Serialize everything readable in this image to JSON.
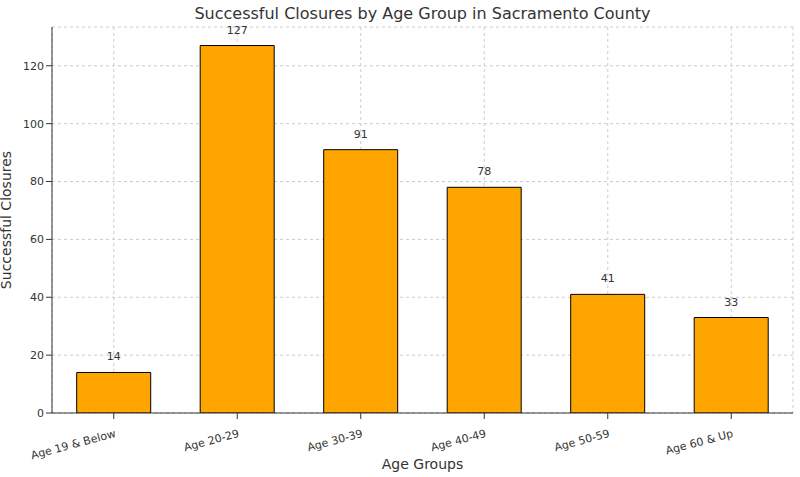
{
  "chart_data": {
    "type": "bar",
    "title": "Successful Closures by Age Group in Sacramento County",
    "x_label": "Age Groups",
    "y_label": "Successful Closures",
    "categories": [
      "Age 19 & Below",
      "Age 20-29",
      "Age 30-39",
      "Age 40-49",
      "Age 50-59",
      "Age 60 & Up"
    ],
    "values": [
      14,
      127,
      91,
      78,
      41,
      33
    ],
    "color": "#ffa500",
    "ylim": [
      0,
      133.4
    ],
    "yticks": [
      0,
      20,
      40,
      60,
      80,
      100,
      120
    ],
    "grid": true,
    "data_labels": true
  }
}
